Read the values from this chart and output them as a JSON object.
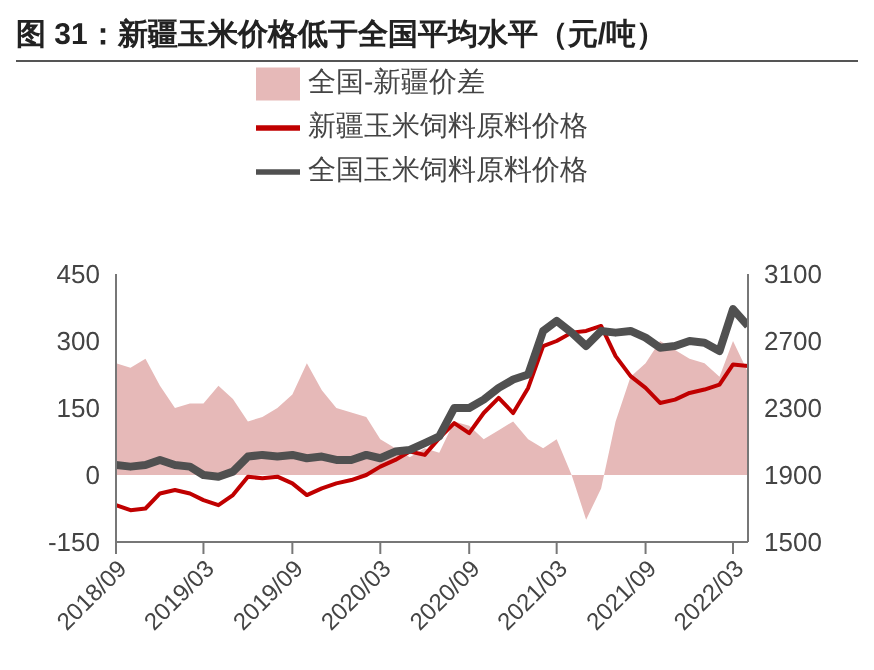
{
  "chart_data": {
    "type": "line",
    "title": "图 31：新疆玉米价格低于全国平均水平（元/吨）",
    "x": [
      "2018-09",
      "2018-10",
      "2018-11",
      "2018-12",
      "2019-01",
      "2019-02",
      "2019-03",
      "2019-04",
      "2019-05",
      "2019-06",
      "2019-07",
      "2019-08",
      "2019-09",
      "2019-10",
      "2019-11",
      "2019-12",
      "2020-01",
      "2020-02",
      "2020-03",
      "2020-04",
      "2020-05",
      "2020-06",
      "2020-07",
      "2020-08",
      "2020-09",
      "2020-10",
      "2020-11",
      "2020-12",
      "2021-01",
      "2021-02",
      "2021-03",
      "2021-04",
      "2021-05",
      "2021-06",
      "2021-07",
      "2021-08",
      "2021-09",
      "2021-10",
      "2021-11",
      "2021-12",
      "2022-01",
      "2022-02",
      "2022-03",
      "2022-04"
    ],
    "series": [
      {
        "name": "全国-新疆价差",
        "type": "area",
        "color": "#e6b9b8",
        "values": [
          250,
          240,
          260,
          200,
          150,
          160,
          160,
          200,
          170,
          120,
          130,
          150,
          180,
          250,
          190,
          150,
          140,
          130,
          80,
          60,
          40,
          60,
          50,
          120,
          110,
          80,
          100,
          120,
          80,
          60,
          80,
          0,
          -100,
          -30,
          120,
          220,
          250,
          300,
          280,
          260,
          250,
          220,
          300,
          230
        ]
      },
      {
        "name": "新疆玉米饲料原料价格",
        "axis": "y2",
        "color": "#c00000",
        "values": [
          1720,
          1690,
          1700,
          1790,
          1810,
          1790,
          1750,
          1720,
          1780,
          1890,
          1880,
          1890,
          1850,
          1780,
          1820,
          1850,
          1870,
          1900,
          1950,
          1990,
          2040,
          2020,
          2120,
          2210,
          2150,
          2270,
          2360,
          2270,
          2420,
          2670,
          2700,
          2750,
          2760,
          2790,
          2610,
          2490,
          2420,
          2330,
          2350,
          2390,
          2410,
          2440,
          2560,
          2550
        ]
      },
      {
        "name": "全国玉米饲料原料价格",
        "axis": "y2",
        "color": "#505050",
        "values": [
          1960,
          1950,
          1960,
          1990,
          1960,
          1950,
          1900,
          1890,
          1920,
          2010,
          2020,
          2010,
          2020,
          2000,
          2010,
          1990,
          1990,
          2020,
          2000,
          2040,
          2050,
          2090,
          2130,
          2300,
          2300,
          2350,
          2420,
          2470,
          2500,
          2760,
          2820,
          2750,
          2670,
          2760,
          2750,
          2760,
          2720,
          2660,
          2670,
          2700,
          2690,
          2640,
          2890,
          2790
        ]
      }
    ],
    "xlim": [
      "2018-09",
      "2022-04"
    ],
    "xticks": [
      {
        "value": "2018-09",
        "label": "2018/09"
      },
      {
        "value": "2019-03",
        "label": "2019/03"
      },
      {
        "value": "2019-09",
        "label": "2019/09"
      },
      {
        "value": "2020-03",
        "label": "2020/03"
      },
      {
        "value": "2020-09",
        "label": "2020/09"
      },
      {
        "value": "2021-03",
        "label": "2021/03"
      },
      {
        "value": "2021-09",
        "label": "2021/09"
      },
      {
        "value": "2022-03",
        "label": "2022/03"
      }
    ],
    "ylim": [
      -150,
      450
    ],
    "yticks": [
      -150,
      0,
      150,
      300,
      450
    ],
    "y2lim": [
      1500,
      3100
    ],
    "y2ticks": [
      1500,
      1900,
      2300,
      2700,
      3100
    ],
    "legend": "top",
    "grid": false,
    "marker": "none"
  }
}
